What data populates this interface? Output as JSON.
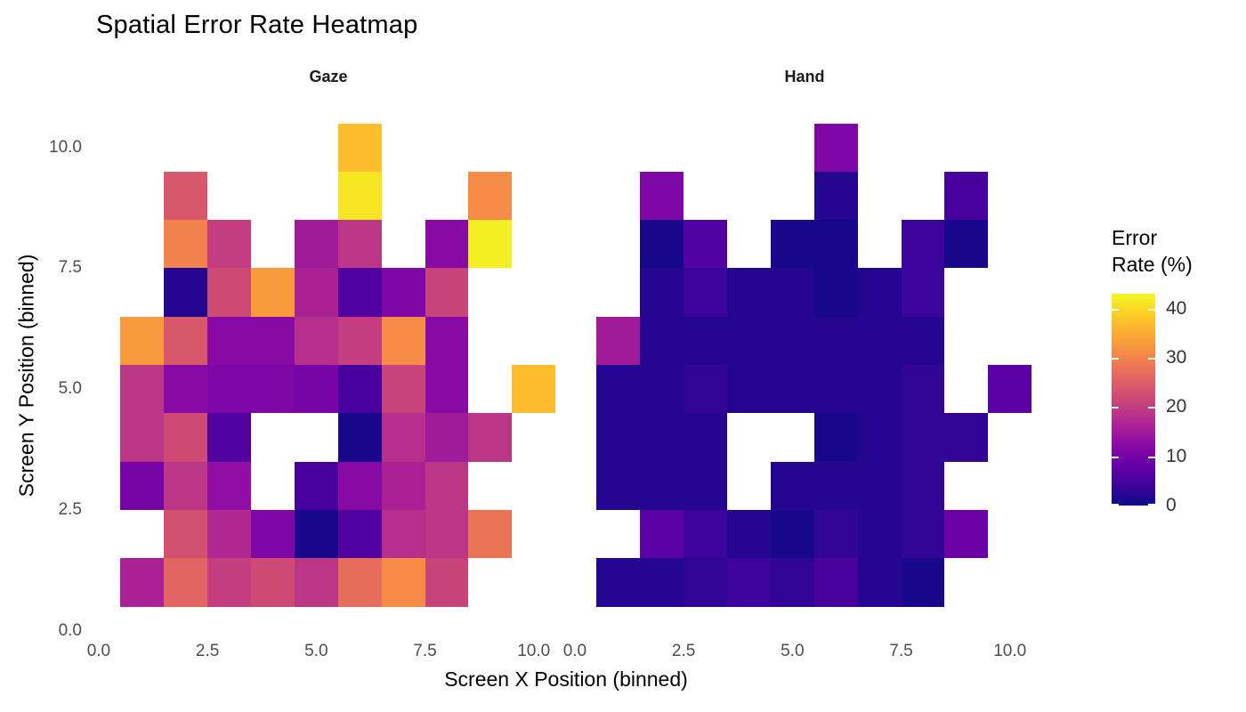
{
  "title": "Spatial Error Rate Heatmap",
  "facets": [
    {
      "label": "Gaze"
    },
    {
      "label": "Hand"
    }
  ],
  "axes": {
    "x": {
      "title": "Screen X Position (binned)",
      "ticks": [
        {
          "label": "0.0",
          "value": 0
        },
        {
          "label": "2.5",
          "value": 2.5
        },
        {
          "label": "5.0",
          "value": 5
        },
        {
          "label": "7.5",
          "value": 7.5
        },
        {
          "label": "10.0",
          "value": 10
        }
      ]
    },
    "y": {
      "title": "Screen Y Position (binned)",
      "ticks": [
        {
          "label": "0.0",
          "value": 0
        },
        {
          "label": "2.5",
          "value": 2.5
        },
        {
          "label": "5.0",
          "value": 5
        },
        {
          "label": "7.5",
          "value": 7.5
        },
        {
          "label": "10.0",
          "value": 10
        }
      ]
    }
  },
  "legend": {
    "title_line1": "Error",
    "title_line2": "Rate (%)",
    "domain": [
      0,
      43
    ],
    "ticks": [
      {
        "label": "0",
        "value": 0
      },
      {
        "label": "10",
        "value": 10
      },
      {
        "label": "20",
        "value": 20
      },
      {
        "label": "30",
        "value": 30
      },
      {
        "label": "40",
        "value": 40
      }
    ]
  },
  "colors": {
    "background": "#ffffff",
    "tick_label": "#4d4d4d",
    "axis_title": "#000000",
    "strip_label": "#1a1a1a",
    "legend_label": "#333333",
    "plasma_stops": [
      "#0d0887",
      "#41049d",
      "#6a00a8",
      "#8f0da4",
      "#b12a90",
      "#cc4778",
      "#e16462",
      "#f2844b",
      "#fca636",
      "#fcce25",
      "#f0f921"
    ]
  },
  "chart_data": {
    "type": "heatmap",
    "title": "Spatial Error Rate Heatmap",
    "xlabel": "Screen X Position (binned)",
    "ylabel": "Screen Y Position (binned)",
    "value_label": "Error Rate (%)",
    "value_domain": [
      0,
      43
    ],
    "x_bins": [
      1,
      2,
      3,
      4,
      5,
      6,
      7,
      8,
      9,
      10
    ],
    "y_bins": [
      1,
      2,
      3,
      4,
      5,
      6,
      7,
      8,
      9,
      10
    ],
    "facets": [
      {
        "name": "Gaze",
        "cells": [
          [
            1,
            1,
            16
          ],
          [
            2,
            1,
            26
          ],
          [
            3,
            1,
            20
          ],
          [
            4,
            1,
            22
          ],
          [
            5,
            1,
            19
          ],
          [
            6,
            1,
            27
          ],
          [
            7,
            1,
            31
          ],
          [
            8,
            1,
            21
          ],
          [
            2,
            2,
            23
          ],
          [
            3,
            2,
            17
          ],
          [
            4,
            2,
            11
          ],
          [
            5,
            2,
            1
          ],
          [
            6,
            2,
            6
          ],
          [
            7,
            2,
            18
          ],
          [
            8,
            2,
            19
          ],
          [
            9,
            2,
            28
          ],
          [
            1,
            3,
            10
          ],
          [
            2,
            3,
            19
          ],
          [
            3,
            3,
            13
          ],
          [
            5,
            3,
            5
          ],
          [
            6,
            3,
            12
          ],
          [
            7,
            3,
            16
          ],
          [
            8,
            3,
            19
          ],
          [
            1,
            4,
            19
          ],
          [
            2,
            4,
            22
          ],
          [
            3,
            4,
            6
          ],
          [
            6,
            4,
            1
          ],
          [
            7,
            4,
            18
          ],
          [
            8,
            4,
            15
          ],
          [
            9,
            4,
            19
          ],
          [
            1,
            5,
            19
          ],
          [
            2,
            5,
            12
          ],
          [
            3,
            5,
            11
          ],
          [
            4,
            5,
            11
          ],
          [
            5,
            5,
            10
          ],
          [
            6,
            5,
            5
          ],
          [
            7,
            5,
            21
          ],
          [
            8,
            5,
            12
          ],
          [
            10,
            5,
            37
          ],
          [
            1,
            6,
            33
          ],
          [
            2,
            6,
            24
          ],
          [
            3,
            6,
            12
          ],
          [
            4,
            6,
            12
          ],
          [
            5,
            6,
            18
          ],
          [
            6,
            6,
            20
          ],
          [
            7,
            6,
            31
          ],
          [
            8,
            6,
            12
          ],
          [
            2,
            7,
            2
          ],
          [
            3,
            7,
            22
          ],
          [
            4,
            7,
            33
          ],
          [
            5,
            7,
            16
          ],
          [
            6,
            7,
            6
          ],
          [
            7,
            7,
            11
          ],
          [
            8,
            7,
            21
          ],
          [
            2,
            8,
            30
          ],
          [
            3,
            8,
            20
          ],
          [
            5,
            8,
            15
          ],
          [
            6,
            8,
            19
          ],
          [
            8,
            8,
            12
          ],
          [
            9,
            8,
            42
          ],
          [
            2,
            9,
            24
          ],
          [
            6,
            9,
            41
          ],
          [
            9,
            9,
            31
          ],
          [
            6,
            10,
            37
          ]
        ]
      },
      {
        "name": "Hand",
        "cells": [
          [
            1,
            1,
            2
          ],
          [
            2,
            1,
            2
          ],
          [
            3,
            1,
            3
          ],
          [
            4,
            1,
            4
          ],
          [
            5,
            1,
            3
          ],
          [
            6,
            1,
            5
          ],
          [
            7,
            1,
            2
          ],
          [
            8,
            1,
            1
          ],
          [
            2,
            2,
            7
          ],
          [
            3,
            2,
            4
          ],
          [
            4,
            2,
            2
          ],
          [
            5,
            2,
            1
          ],
          [
            6,
            2,
            3
          ],
          [
            7,
            2,
            2
          ],
          [
            8,
            2,
            3
          ],
          [
            9,
            2,
            9
          ],
          [
            1,
            3,
            2
          ],
          [
            2,
            3,
            2
          ],
          [
            3,
            3,
            2
          ],
          [
            5,
            3,
            2
          ],
          [
            6,
            3,
            2
          ],
          [
            7,
            3,
            2
          ],
          [
            8,
            3,
            3
          ],
          [
            1,
            4,
            2
          ],
          [
            2,
            4,
            2
          ],
          [
            3,
            4,
            2
          ],
          [
            6,
            4,
            1
          ],
          [
            7,
            4,
            2
          ],
          [
            8,
            4,
            3
          ],
          [
            9,
            4,
            3
          ],
          [
            1,
            5,
            2
          ],
          [
            2,
            5,
            2
          ],
          [
            3,
            5,
            3
          ],
          [
            4,
            5,
            2
          ],
          [
            5,
            5,
            2
          ],
          [
            6,
            5,
            2
          ],
          [
            7,
            5,
            2
          ],
          [
            8,
            5,
            3
          ],
          [
            10,
            5,
            7
          ],
          [
            1,
            6,
            15
          ],
          [
            2,
            6,
            2
          ],
          [
            3,
            6,
            2
          ],
          [
            4,
            6,
            2
          ],
          [
            5,
            6,
            2
          ],
          [
            6,
            6,
            2
          ],
          [
            7,
            6,
            2
          ],
          [
            8,
            6,
            2
          ],
          [
            2,
            7,
            2
          ],
          [
            3,
            7,
            4
          ],
          [
            4,
            7,
            2
          ],
          [
            5,
            7,
            2
          ],
          [
            6,
            7,
            1
          ],
          [
            7,
            7,
            2
          ],
          [
            8,
            7,
            4
          ],
          [
            2,
            8,
            1
          ],
          [
            3,
            8,
            6
          ],
          [
            5,
            8,
            1
          ],
          [
            6,
            8,
            1
          ],
          [
            8,
            8,
            4
          ],
          [
            9,
            8,
            1
          ],
          [
            2,
            9,
            11
          ],
          [
            6,
            9,
            2
          ],
          [
            9,
            9,
            5
          ],
          [
            6,
            10,
            11
          ]
        ]
      }
    ]
  }
}
